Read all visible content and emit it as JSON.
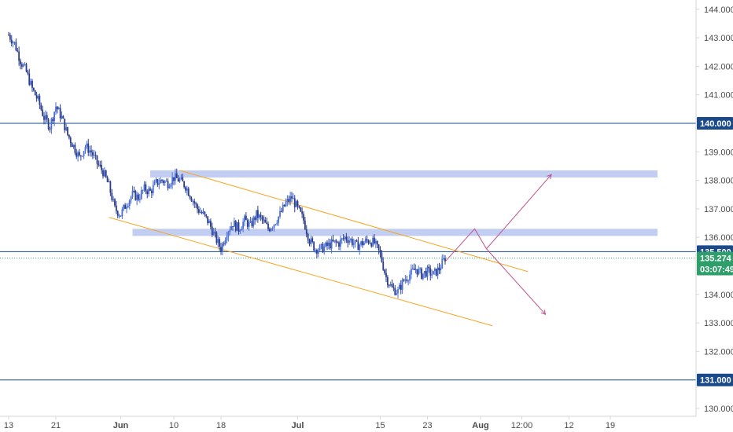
{
  "chart_data": {
    "type": "candlestick",
    "title": "",
    "xlabel": "",
    "ylabel": "",
    "ylim": [
      129.8,
      144.5
    ],
    "y_ticks": [
      {
        "value": 144,
        "label": "144.000"
      },
      {
        "value": 143,
        "label": "143.000"
      },
      {
        "value": 142,
        "label": "142.000"
      },
      {
        "value": 141,
        "label": "141.000"
      },
      {
        "value": 139,
        "label": "139.000"
      },
      {
        "value": 138,
        "label": "138.000"
      },
      {
        "value": 137,
        "label": "137.000"
      },
      {
        "value": 136,
        "label": "136.000"
      },
      {
        "value": 134,
        "label": "134.000"
      },
      {
        "value": 133,
        "label": "133.000"
      },
      {
        "value": 132,
        "label": "132.000"
      },
      {
        "value": 130,
        "label": "130.000"
      }
    ],
    "x_ticks": [
      {
        "label": "13",
        "day": 0
      },
      {
        "label": "21",
        "day": 8
      },
      {
        "label": "Jun",
        "day": 19,
        "bold": true
      },
      {
        "label": "10",
        "day": 28
      },
      {
        "label": "18",
        "day": 36
      },
      {
        "label": "Jul",
        "day": 49,
        "bold": true
      },
      {
        "label": "15",
        "day": 63
      },
      {
        "label": "23",
        "day": 71
      },
      {
        "label": "Aug",
        "day": 80,
        "bold": true
      },
      {
        "label": "12:00",
        "day": 87
      },
      {
        "label": "12",
        "day": 95
      },
      {
        "label": "19",
        "day": 102
      }
    ],
    "horizontal_levels": [
      {
        "value": 140.0,
        "label": "140.000",
        "color": "#1a4a8a"
      },
      {
        "value": 135.5,
        "label": "135.500",
        "color": "#1a4a8a"
      },
      {
        "value": 131.0,
        "label": "131.000",
        "color": "#1a4a8a"
      }
    ],
    "current_price": {
      "value": 135.274,
      "label": "135.274",
      "countdown": "03:07:49",
      "color": "#2e9e6b"
    },
    "zones": [
      {
        "x_start": 24,
        "x_end": 110,
        "y_low": 138.1,
        "y_high": 138.35,
        "color": "#b7c6ee"
      },
      {
        "x_start": 21,
        "x_end": 110,
        "y_low": 136.05,
        "y_high": 136.3,
        "color": "#b7c6ee"
      }
    ],
    "channel": {
      "color": "#f5a623",
      "upper": [
        [
          29,
          138.35
        ],
        [
          88,
          134.8
        ]
      ],
      "lower": [
        [
          17,
          136.7
        ],
        [
          82,
          132.9
        ]
      ]
    },
    "projections": {
      "color": "#c0508a",
      "bullish_path": [
        [
          74,
          135.15
        ],
        [
          79,
          136.3
        ],
        [
          81,
          135.6
        ],
        [
          92,
          138.2
        ]
      ],
      "bearish_path": [
        [
          81,
          135.6
        ],
        [
          91,
          133.3
        ]
      ]
    },
    "series": [
      {
        "name": "",
        "ohlc_keyframes": [
          [
            0,
            143.1
          ],
          [
            1,
            142.8
          ],
          [
            2,
            142.2
          ],
          [
            3,
            141.8
          ],
          [
            4,
            141.2
          ],
          [
            5,
            140.8
          ],
          [
            6,
            140.2
          ],
          [
            7,
            139.9
          ],
          [
            8,
            140.6
          ],
          [
            9,
            140.2
          ],
          [
            10,
            139.6
          ],
          [
            11,
            139.2
          ],
          [
            12,
            138.8
          ],
          [
            13,
            139.2
          ],
          [
            14,
            139.0
          ],
          [
            15,
            138.6
          ],
          [
            16,
            138.3
          ],
          [
            17,
            137.8
          ],
          [
            18,
            137.0
          ],
          [
            19,
            136.8
          ],
          [
            20,
            137.2
          ],
          [
            21,
            137.5
          ],
          [
            22,
            137.4
          ],
          [
            23,
            137.7
          ],
          [
            24,
            137.6
          ],
          [
            25,
            137.9
          ],
          [
            26,
            138.0
          ],
          [
            27,
            137.9
          ],
          [
            28,
            138.1
          ],
          [
            29,
            138.0
          ],
          [
            30,
            137.8
          ],
          [
            31,
            137.4
          ],
          [
            32,
            137.0
          ],
          [
            33,
            136.8
          ],
          [
            34,
            136.5
          ],
          [
            35,
            136.0
          ],
          [
            36,
            135.6
          ],
          [
            37,
            136.2
          ],
          [
            38,
            136.5
          ],
          [
            39,
            136.3
          ],
          [
            40,
            136.6
          ],
          [
            41,
            136.4
          ],
          [
            42,
            136.8
          ],
          [
            43,
            136.6
          ],
          [
            44,
            136.3
          ],
          [
            45,
            136.5
          ],
          [
            46,
            136.8
          ],
          [
            47,
            137.2
          ],
          [
            48,
            137.4
          ],
          [
            49,
            137.0
          ],
          [
            50,
            136.6
          ],
          [
            51,
            135.9
          ],
          [
            52,
            135.6
          ],
          [
            53,
            135.6
          ],
          [
            54,
            135.7
          ],
          [
            55,
            135.8
          ],
          [
            56,
            135.8
          ],
          [
            57,
            136.0
          ],
          [
            58,
            135.9
          ],
          [
            59,
            135.7
          ],
          [
            60,
            135.8
          ],
          [
            61,
            135.9
          ],
          [
            62,
            135.8
          ],
          [
            63,
            135.4
          ],
          [
            64,
            134.6
          ],
          [
            65,
            134.2
          ],
          [
            66,
            134.1
          ],
          [
            67,
            134.5
          ],
          [
            68,
            134.7
          ],
          [
            69,
            134.9
          ],
          [
            70,
            134.7
          ],
          [
            71,
            134.8
          ],
          [
            72,
            134.7
          ],
          [
            73,
            134.9
          ],
          [
            74,
            135.27
          ]
        ],
        "color_up": "#4a6fd4",
        "color_down": "#2a3c8a"
      }
    ],
    "grid": false,
    "legend": "none"
  }
}
